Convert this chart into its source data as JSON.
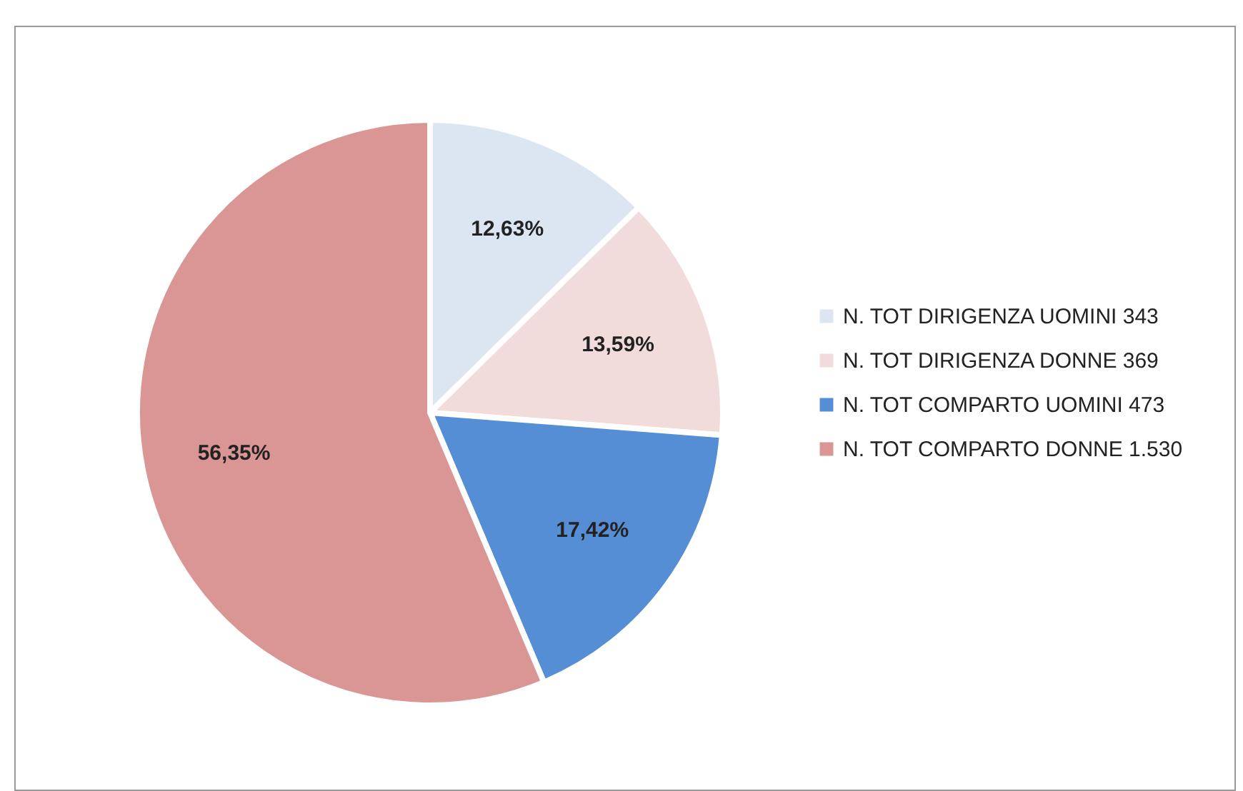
{
  "chart_data": {
    "type": "pie",
    "categories": [
      "N. TOT DIRIGENZA UOMINI 343",
      "N. TOT DIRIGENZA DONNE 369",
      "N. TOT COMPARTO UOMINI 473",
      "N. TOT COMPARTO DONNE 1.530"
    ],
    "values": [
      12.63,
      13.59,
      17.42,
      56.35
    ],
    "value_labels": [
      "12,63%",
      "13,59%",
      "17,42%",
      "56,35%"
    ],
    "colors": [
      "#dce6f2",
      "#f2dcdb",
      "#558ed5",
      "#d99694"
    ],
    "legend": "right"
  }
}
